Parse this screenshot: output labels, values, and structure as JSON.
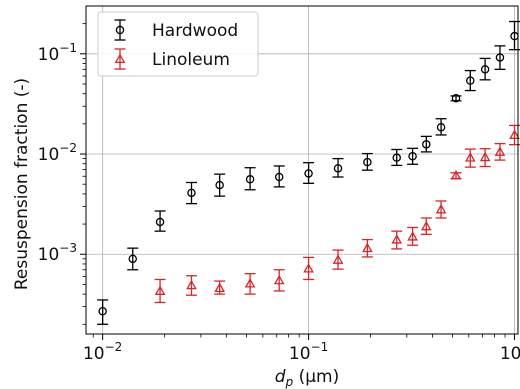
{
  "chart_data": {
    "type": "scatter",
    "xlabel_main": "d",
    "xlabel_sub": "p",
    "xlabel_unit": " (μm)",
    "ylabel": "Resuspension fraction (-)",
    "xscale": "log",
    "yscale": "log",
    "xlim": [
      0.0083,
      1.04
    ],
    "ylim": [
      0.00016,
      0.3
    ],
    "grid": true,
    "legend_position": "top-left",
    "x_ticks": [
      {
        "value": 0.01,
        "base": "10",
        "exp": "−2"
      },
      {
        "value": 0.1,
        "base": "10",
        "exp": "−1"
      },
      {
        "value": 1,
        "base": "10",
        "exp": "0"
      }
    ],
    "y_ticks": [
      {
        "value": 0.001,
        "base": "10",
        "exp": "−3"
      },
      {
        "value": 0.01,
        "base": "10",
        "exp": "−2"
      },
      {
        "value": 0.1,
        "base": "10",
        "exp": "−1"
      }
    ],
    "series": [
      {
        "name": "Hardwood",
        "color": "#000000",
        "marker": "circle",
        "points": [
          {
            "x": 0.01,
            "y": 0.00027,
            "lo": 0.0002,
            "hi": 0.00035
          },
          {
            "x": 0.014,
            "y": 0.0009,
            "lo": 0.0007,
            "hi": 0.00115
          },
          {
            "x": 0.019,
            "y": 0.0021,
            "lo": 0.0017,
            "hi": 0.0027
          },
          {
            "x": 0.027,
            "y": 0.0041,
            "lo": 0.0032,
            "hi": 0.0052
          },
          {
            "x": 0.037,
            "y": 0.0049,
            "lo": 0.0038,
            "hi": 0.0063
          },
          {
            "x": 0.052,
            "y": 0.0056,
            "lo": 0.0044,
            "hi": 0.0073
          },
          {
            "x": 0.072,
            "y": 0.0059,
            "lo": 0.0047,
            "hi": 0.0076
          },
          {
            "x": 0.1,
            "y": 0.0064,
            "lo": 0.0051,
            "hi": 0.0082
          },
          {
            "x": 0.139,
            "y": 0.0072,
            "lo": 0.0059,
            "hi": 0.009
          },
          {
            "x": 0.193,
            "y": 0.0083,
            "lo": 0.0069,
            "hi": 0.0101
          },
          {
            "x": 0.268,
            "y": 0.0092,
            "lo": 0.0077,
            "hi": 0.0111
          },
          {
            "x": 0.32,
            "y": 0.0095,
            "lo": 0.0079,
            "hi": 0.0114
          },
          {
            "x": 0.373,
            "y": 0.0125,
            "lo": 0.0105,
            "hi": 0.015
          },
          {
            "x": 0.44,
            "y": 0.0185,
            "lo": 0.0155,
            "hi": 0.0225
          },
          {
            "x": 0.52,
            "y": 0.036,
            "lo": 0.034,
            "hi": 0.038
          },
          {
            "x": 0.61,
            "y": 0.054,
            "lo": 0.043,
            "hi": 0.068
          },
          {
            "x": 0.72,
            "y": 0.07,
            "lo": 0.055,
            "hi": 0.09
          },
          {
            "x": 0.85,
            "y": 0.092,
            "lo": 0.07,
            "hi": 0.12
          },
          {
            "x": 1.0,
            "y": 0.15,
            "lo": 0.11,
            "hi": 0.21
          }
        ]
      },
      {
        "name": "Linoleum",
        "color": "#d62728",
        "marker": "triangle",
        "points": [
          {
            "x": 0.019,
            "y": 0.00043,
            "lo": 0.00033,
            "hi": 0.00056
          },
          {
            "x": 0.027,
            "y": 0.00049,
            "lo": 0.00039,
            "hi": 0.00061
          },
          {
            "x": 0.037,
            "y": 0.00046,
            "lo": 0.0004,
            "hi": 0.00054
          },
          {
            "x": 0.052,
            "y": 0.00051,
            "lo": 0.0004,
            "hi": 0.00064
          },
          {
            "x": 0.072,
            "y": 0.00055,
            "lo": 0.00043,
            "hi": 0.0007
          },
          {
            "x": 0.1,
            "y": 0.00072,
            "lo": 0.00056,
            "hi": 0.00093
          },
          {
            "x": 0.139,
            "y": 0.00088,
            "lo": 0.00071,
            "hi": 0.0011
          },
          {
            "x": 0.193,
            "y": 0.00115,
            "lo": 0.00094,
            "hi": 0.0014
          },
          {
            "x": 0.268,
            "y": 0.0014,
            "lo": 0.00113,
            "hi": 0.0017
          },
          {
            "x": 0.32,
            "y": 0.0015,
            "lo": 0.00123,
            "hi": 0.00185
          },
          {
            "x": 0.373,
            "y": 0.0019,
            "lo": 0.00158,
            "hi": 0.0023
          },
          {
            "x": 0.44,
            "y": 0.0028,
            "lo": 0.0023,
            "hi": 0.0034
          },
          {
            "x": 0.52,
            "y": 0.0061,
            "lo": 0.0057,
            "hi": 0.0065
          },
          {
            "x": 0.61,
            "y": 0.0092,
            "lo": 0.0074,
            "hi": 0.0112
          },
          {
            "x": 0.72,
            "y": 0.0093,
            "lo": 0.0075,
            "hi": 0.0113
          },
          {
            "x": 0.85,
            "y": 0.0105,
            "lo": 0.0087,
            "hi": 0.0127
          },
          {
            "x": 1.0,
            "y": 0.0155,
            "lo": 0.0124,
            "hi": 0.0193
          }
        ]
      }
    ]
  }
}
